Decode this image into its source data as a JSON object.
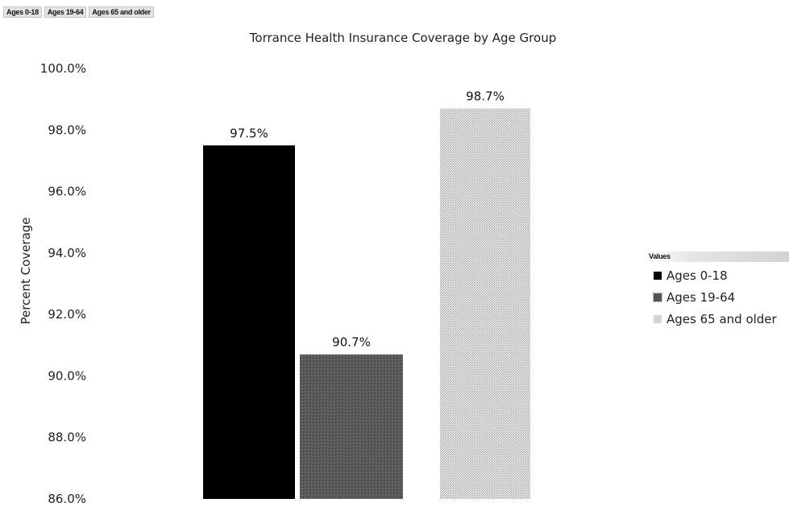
{
  "filters": [
    "Ages 0-18",
    "Ages 19-64",
    "Ages 65 and older"
  ],
  "legend": {
    "header": "Values",
    "items": [
      {
        "label": "Ages 0-18",
        "color": "#000000"
      },
      {
        "label": "Ages 19-64",
        "color": "#555555"
      },
      {
        "label": "Ages 65 and older",
        "color": "#d4d4d4"
      }
    ]
  },
  "chart_data": {
    "type": "bar",
    "title": "Torrance Health Insurance Coverage by Age Group",
    "xlabel": "",
    "ylabel": "Percent Coverage",
    "ylim": [
      86.0,
      100.0
    ],
    "yticks": [
      "100.0%",
      "98.0%",
      "96.0%",
      "94.0%",
      "92.0%",
      "90.0%",
      "88.0%",
      "86.0%"
    ],
    "grid": false,
    "legend_position": "right",
    "series": [
      {
        "name": "Ages 0-18",
        "values": [
          97.5
        ],
        "label": "97.5%",
        "color": "#000000"
      },
      {
        "name": "Ages 19-64",
        "values": [
          90.7
        ],
        "label": "90.7%",
        "color": "#555555"
      },
      {
        "name": "Ages 65 and older",
        "values": [
          98.7
        ],
        "label": "98.7%",
        "color": "#d4d4d4"
      }
    ]
  }
}
